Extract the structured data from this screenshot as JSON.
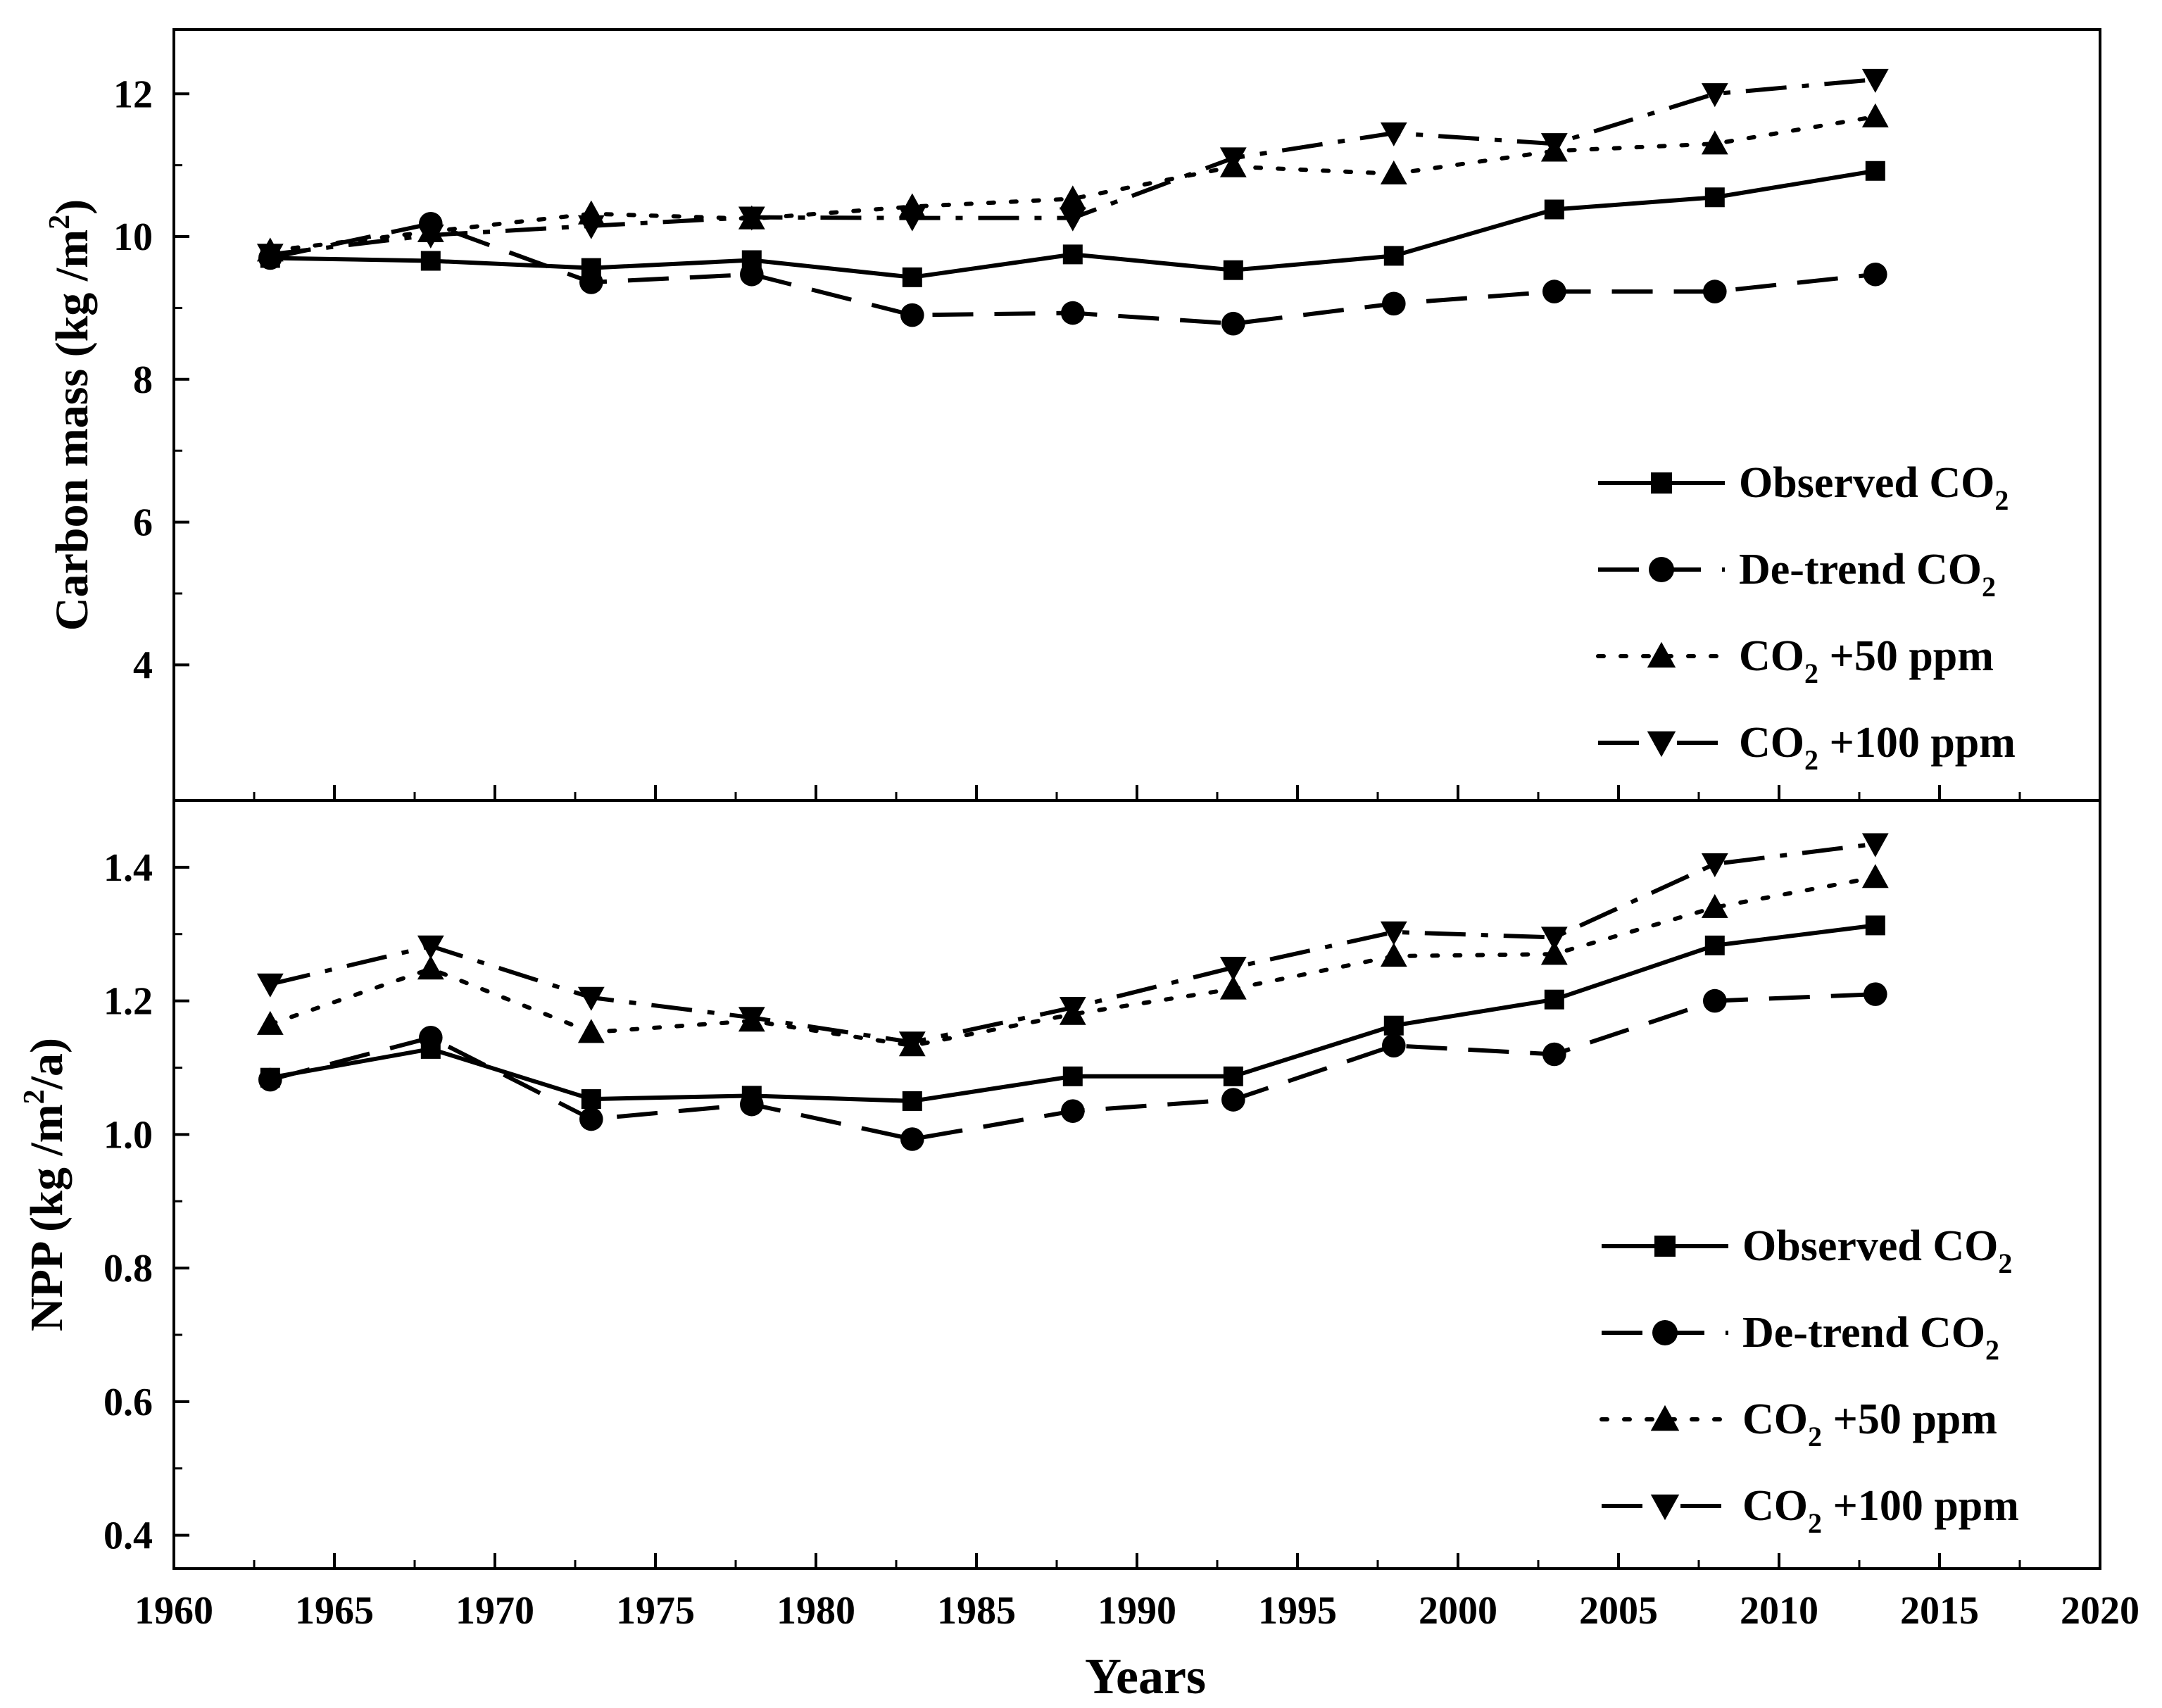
{
  "chart_data": {
    "type": "line",
    "x": [
      1963,
      1968,
      1973,
      1978,
      1983,
      1988,
      1993,
      1998,
      2003,
      2008,
      2013
    ],
    "xlabel": "Years",
    "xlim": [
      1960,
      2020
    ],
    "xticks": [
      1960,
      1965,
      1970,
      1975,
      1980,
      1985,
      1990,
      1995,
      2000,
      2005,
      2010,
      2015,
      2020
    ],
    "panels": [
      {
        "id": "carbon",
        "ylabel": "Carbon mass (kg /m²)",
        "ylabel_parts": [
          "Carbon mass (kg /m",
          "2",
          ")"
        ],
        "ylim": [
          2.1,
          12.9
        ],
        "yticks": [
          4,
          6,
          8,
          10,
          12
        ],
        "legend_position": "bottom-right",
        "series": [
          {
            "key": "observed",
            "name": "Observed CO₂",
            "marker": "square",
            "dash": "solid",
            "values": [
              9.7,
              9.66,
              9.56,
              9.67,
              9.43,
              9.75,
              9.53,
              9.73,
              10.38,
              10.55,
              10.92
            ]
          },
          {
            "key": "detrend",
            "name": "De-trend CO₂",
            "marker": "circle",
            "dash": "dash",
            "values": [
              9.7,
              10.18,
              9.36,
              9.47,
              8.9,
              8.93,
              8.78,
              9.06,
              9.23,
              9.23,
              9.47
            ]
          },
          {
            "key": "plus50",
            "name": "CO₂ +50 ppm",
            "marker": "triangle-up",
            "dash": "dot",
            "values": [
              9.8,
              10.07,
              10.32,
              10.25,
              10.42,
              10.53,
              10.98,
              10.88,
              11.2,
              11.3,
              11.68
            ]
          },
          {
            "key": "plus100",
            "name": "CO₂ +100 ppm",
            "marker": "triangle-down",
            "dash": "dashdot",
            "values": [
              9.75,
              10.02,
              10.15,
              10.27,
              10.26,
              10.26,
              11.1,
              11.45,
              11.3,
              12.0,
              12.2
            ]
          }
        ]
      },
      {
        "id": "npp",
        "ylabel": "NPP (kg /m²/a)",
        "ylabel_parts": [
          "NPP (kg /m",
          "2",
          "/a)"
        ],
        "ylim": [
          0.35,
          1.5
        ],
        "yticks": [
          0.4,
          0.6,
          0.8,
          1.0,
          1.2,
          1.4
        ],
        "legend_position": "bottom-right",
        "series": [
          {
            "key": "observed",
            "name": "Observed CO₂",
            "marker": "square",
            "dash": "solid",
            "values": [
              1.085,
              1.128,
              1.053,
              1.058,
              1.05,
              1.087,
              1.087,
              1.163,
              1.202,
              1.283,
              1.313
            ]
          },
          {
            "key": "detrend",
            "name": "De-trend CO₂",
            "marker": "circle",
            "dash": "dash",
            "values": [
              1.082,
              1.145,
              1.023,
              1.045,
              0.993,
              1.035,
              1.052,
              1.133,
              1.12,
              1.2,
              1.21
            ]
          },
          {
            "key": "plus50",
            "name": "CO₂ +50 ppm",
            "marker": "triangle-up",
            "dash": "dot",
            "values": [
              1.165,
              1.248,
              1.153,
              1.17,
              1.133,
              1.18,
              1.218,
              1.267,
              1.27,
              1.34,
              1.385
            ]
          },
          {
            "key": "plus100",
            "name": "CO₂ +100 ppm",
            "marker": "triangle-down",
            "dash": "dashdot",
            "values": [
              1.225,
              1.282,
              1.205,
              1.175,
              1.138,
              1.19,
              1.25,
              1.303,
              1.295,
              1.405,
              1.435
            ]
          }
        ]
      }
    ]
  }
}
